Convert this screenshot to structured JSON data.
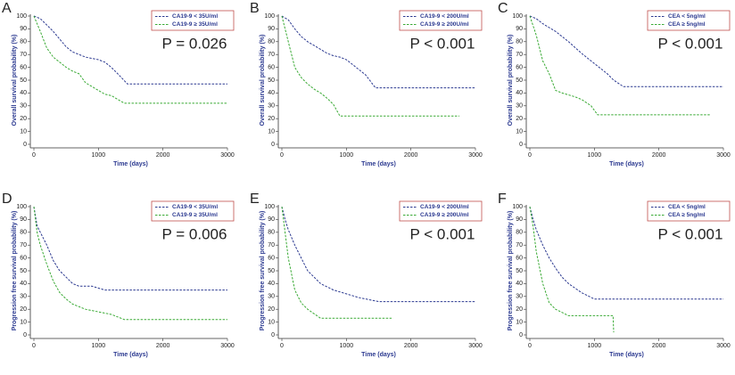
{
  "chart_data": [
    {
      "type": "line",
      "panel_label": "A",
      "y_label": "Overall survival probability (%)",
      "x_label": "Time (days)",
      "annotation": "P = 0.026",
      "xlim": [
        0,
        3000
      ],
      "ylim": [
        0,
        100
      ],
      "xticks": [
        0,
        1000,
        2000,
        3000
      ],
      "yticks": [
        0,
        10,
        20,
        30,
        40,
        50,
        60,
        70,
        80,
        90,
        100
      ],
      "series": [
        {
          "name": "CA19-9 < 35U/ml",
          "color": "#2b3990",
          "x": [
            0,
            100,
            200,
            300,
            400,
            500,
            600,
            700,
            800,
            1000,
            1100,
            1200,
            1300,
            1450,
            3000
          ],
          "values": [
            100,
            98,
            93,
            88,
            82,
            76,
            72,
            70,
            68,
            66,
            64,
            60,
            55,
            47,
            47
          ]
        },
        {
          "name": "CA19-9 ≥ 35U/ml",
          "color": "#3aaa35",
          "x": [
            0,
            100,
            200,
            300,
            400,
            500,
            600,
            700,
            800,
            900,
            1000,
            1100,
            1200,
            1400,
            3000
          ],
          "values": [
            100,
            88,
            75,
            68,
            64,
            60,
            57,
            55,
            48,
            45,
            42,
            39,
            38,
            32,
            32
          ]
        }
      ]
    },
    {
      "type": "line",
      "panel_label": "B",
      "y_label": "Overall survival probability (%)",
      "x_label": "Time (days)",
      "annotation": "P < 0.001",
      "xlim": [
        0,
        3000
      ],
      "ylim": [
        0,
        100
      ],
      "xticks": [
        0,
        1000,
        2000,
        3000
      ],
      "yticks": [
        0,
        10,
        20,
        30,
        40,
        50,
        60,
        70,
        80,
        90,
        100
      ],
      "series": [
        {
          "name": "CA19-9 < 200U/ml",
          "color": "#2b3990",
          "x": [
            0,
            100,
            200,
            300,
            400,
            500,
            600,
            700,
            800,
            900,
            1000,
            1100,
            1200,
            1300,
            1450,
            3000
          ],
          "values": [
            100,
            97,
            90,
            84,
            80,
            77,
            74,
            71,
            69,
            68,
            66,
            62,
            58,
            54,
            44,
            44
          ]
        },
        {
          "name": "CA19-9 ≥ 200U/ml",
          "color": "#3aaa35",
          "x": [
            0,
            100,
            200,
            300,
            400,
            500,
            600,
            700,
            800,
            900,
            2750
          ],
          "values": [
            100,
            80,
            60,
            52,
            47,
            43,
            40,
            36,
            31,
            22,
            22
          ]
        }
      ]
    },
    {
      "type": "line",
      "panel_label": "C",
      "y_label": "Overall survival probability (%)",
      "x_label": "Time (days)",
      "annotation": "P < 0.001",
      "xlim": [
        0,
        3000
      ],
      "ylim": [
        0,
        100
      ],
      "xticks": [
        0,
        1000,
        2000,
        3000
      ],
      "yticks": [
        0,
        10,
        20,
        30,
        40,
        50,
        60,
        70,
        80,
        90,
        100
      ],
      "series": [
        {
          "name": "CEA < 5ng/ml",
          "color": "#2b3990",
          "x": [
            0,
            100,
            200,
            400,
            600,
            800,
            1000,
            1200,
            1300,
            1450,
            3000
          ],
          "values": [
            100,
            98,
            94,
            88,
            80,
            71,
            63,
            55,
            50,
            45,
            45
          ]
        },
        {
          "name": "CEA ≥ 5ng/ml",
          "color": "#3aaa35",
          "x": [
            0,
            100,
            200,
            300,
            400,
            500,
            700,
            800,
            950,
            1050,
            2800
          ],
          "values": [
            100,
            85,
            65,
            55,
            42,
            40,
            37,
            35,
            30,
            23,
            23
          ]
        }
      ]
    },
    {
      "type": "line",
      "panel_label": "D",
      "y_label": "Progression free survival probability (%)",
      "x_label": "Time (days)",
      "annotation": "P = 0.006",
      "xlim": [
        0,
        3000
      ],
      "ylim": [
        0,
        100
      ],
      "xticks": [
        0,
        1000,
        2000,
        3000
      ],
      "yticks": [
        0,
        10,
        20,
        30,
        40,
        50,
        60,
        70,
        80,
        90,
        100
      ],
      "series": [
        {
          "name": "CA19-9 < 35U/ml",
          "color": "#2b3990",
          "x": [
            0,
            50,
            100,
            200,
            300,
            400,
            500,
            600,
            700,
            900,
            1100,
            3000
          ],
          "values": [
            100,
            85,
            80,
            70,
            58,
            50,
            45,
            40,
            38,
            38,
            35,
            35
          ]
        },
        {
          "name": "CA19-9 ≥ 35U/ml",
          "color": "#3aaa35",
          "x": [
            0,
            50,
            100,
            200,
            300,
            400,
            500,
            600,
            800,
            1000,
            1200,
            1400,
            3000
          ],
          "values": [
            100,
            80,
            70,
            55,
            42,
            33,
            28,
            24,
            20,
            18,
            16,
            12,
            12
          ]
        }
      ]
    },
    {
      "type": "line",
      "panel_label": "E",
      "y_label": "Progression free survival probability (%)",
      "x_label": "Time (days)",
      "annotation": "P < 0.001",
      "xlim": [
        0,
        3000
      ],
      "ylim": [
        0,
        100
      ],
      "xticks": [
        0,
        1000,
        2000,
        3000
      ],
      "yticks": [
        0,
        10,
        20,
        30,
        40,
        50,
        60,
        70,
        80,
        90,
        100
      ],
      "series": [
        {
          "name": "CA19-9 < 200U/ml",
          "color": "#2b3990",
          "x": [
            0,
            50,
            100,
            200,
            300,
            400,
            500,
            600,
            800,
            1000,
            1200,
            1500,
            3000
          ],
          "values": [
            100,
            90,
            82,
            70,
            60,
            50,
            45,
            40,
            35,
            32,
            29,
            26,
            26
          ]
        },
        {
          "name": "CA19-9 ≥ 200U/ml",
          "color": "#3aaa35",
          "x": [
            0,
            50,
            100,
            200,
            300,
            400,
            600,
            1700
          ],
          "values": [
            100,
            80,
            60,
            35,
            25,
            20,
            13,
            13
          ]
        }
      ]
    },
    {
      "type": "line",
      "panel_label": "F",
      "y_label": "Progression free survival probability (%)",
      "x_label": "Time (days)",
      "annotation": "P < 0.001",
      "xlim": [
        0,
        3000
      ],
      "ylim": [
        0,
        100
      ],
      "xticks": [
        0,
        1000,
        2000,
        3000
      ],
      "yticks": [
        0,
        10,
        20,
        30,
        40,
        50,
        60,
        70,
        80,
        90,
        100
      ],
      "series": [
        {
          "name": "CEA < 5ng/ml",
          "color": "#2b3990",
          "x": [
            0,
            50,
            100,
            200,
            300,
            400,
            500,
            600,
            800,
            1000,
            3000
          ],
          "values": [
            100,
            90,
            82,
            70,
            60,
            52,
            45,
            40,
            33,
            28,
            28
          ]
        },
        {
          "name": "CEA ≥ 5ng/ml",
          "color": "#3aaa35",
          "x": [
            0,
            50,
            100,
            200,
            300,
            400,
            600,
            1000,
            1290,
            1300
          ],
          "values": [
            100,
            85,
            65,
            40,
            25,
            20,
            15,
            15,
            15,
            2
          ]
        }
      ]
    }
  ]
}
